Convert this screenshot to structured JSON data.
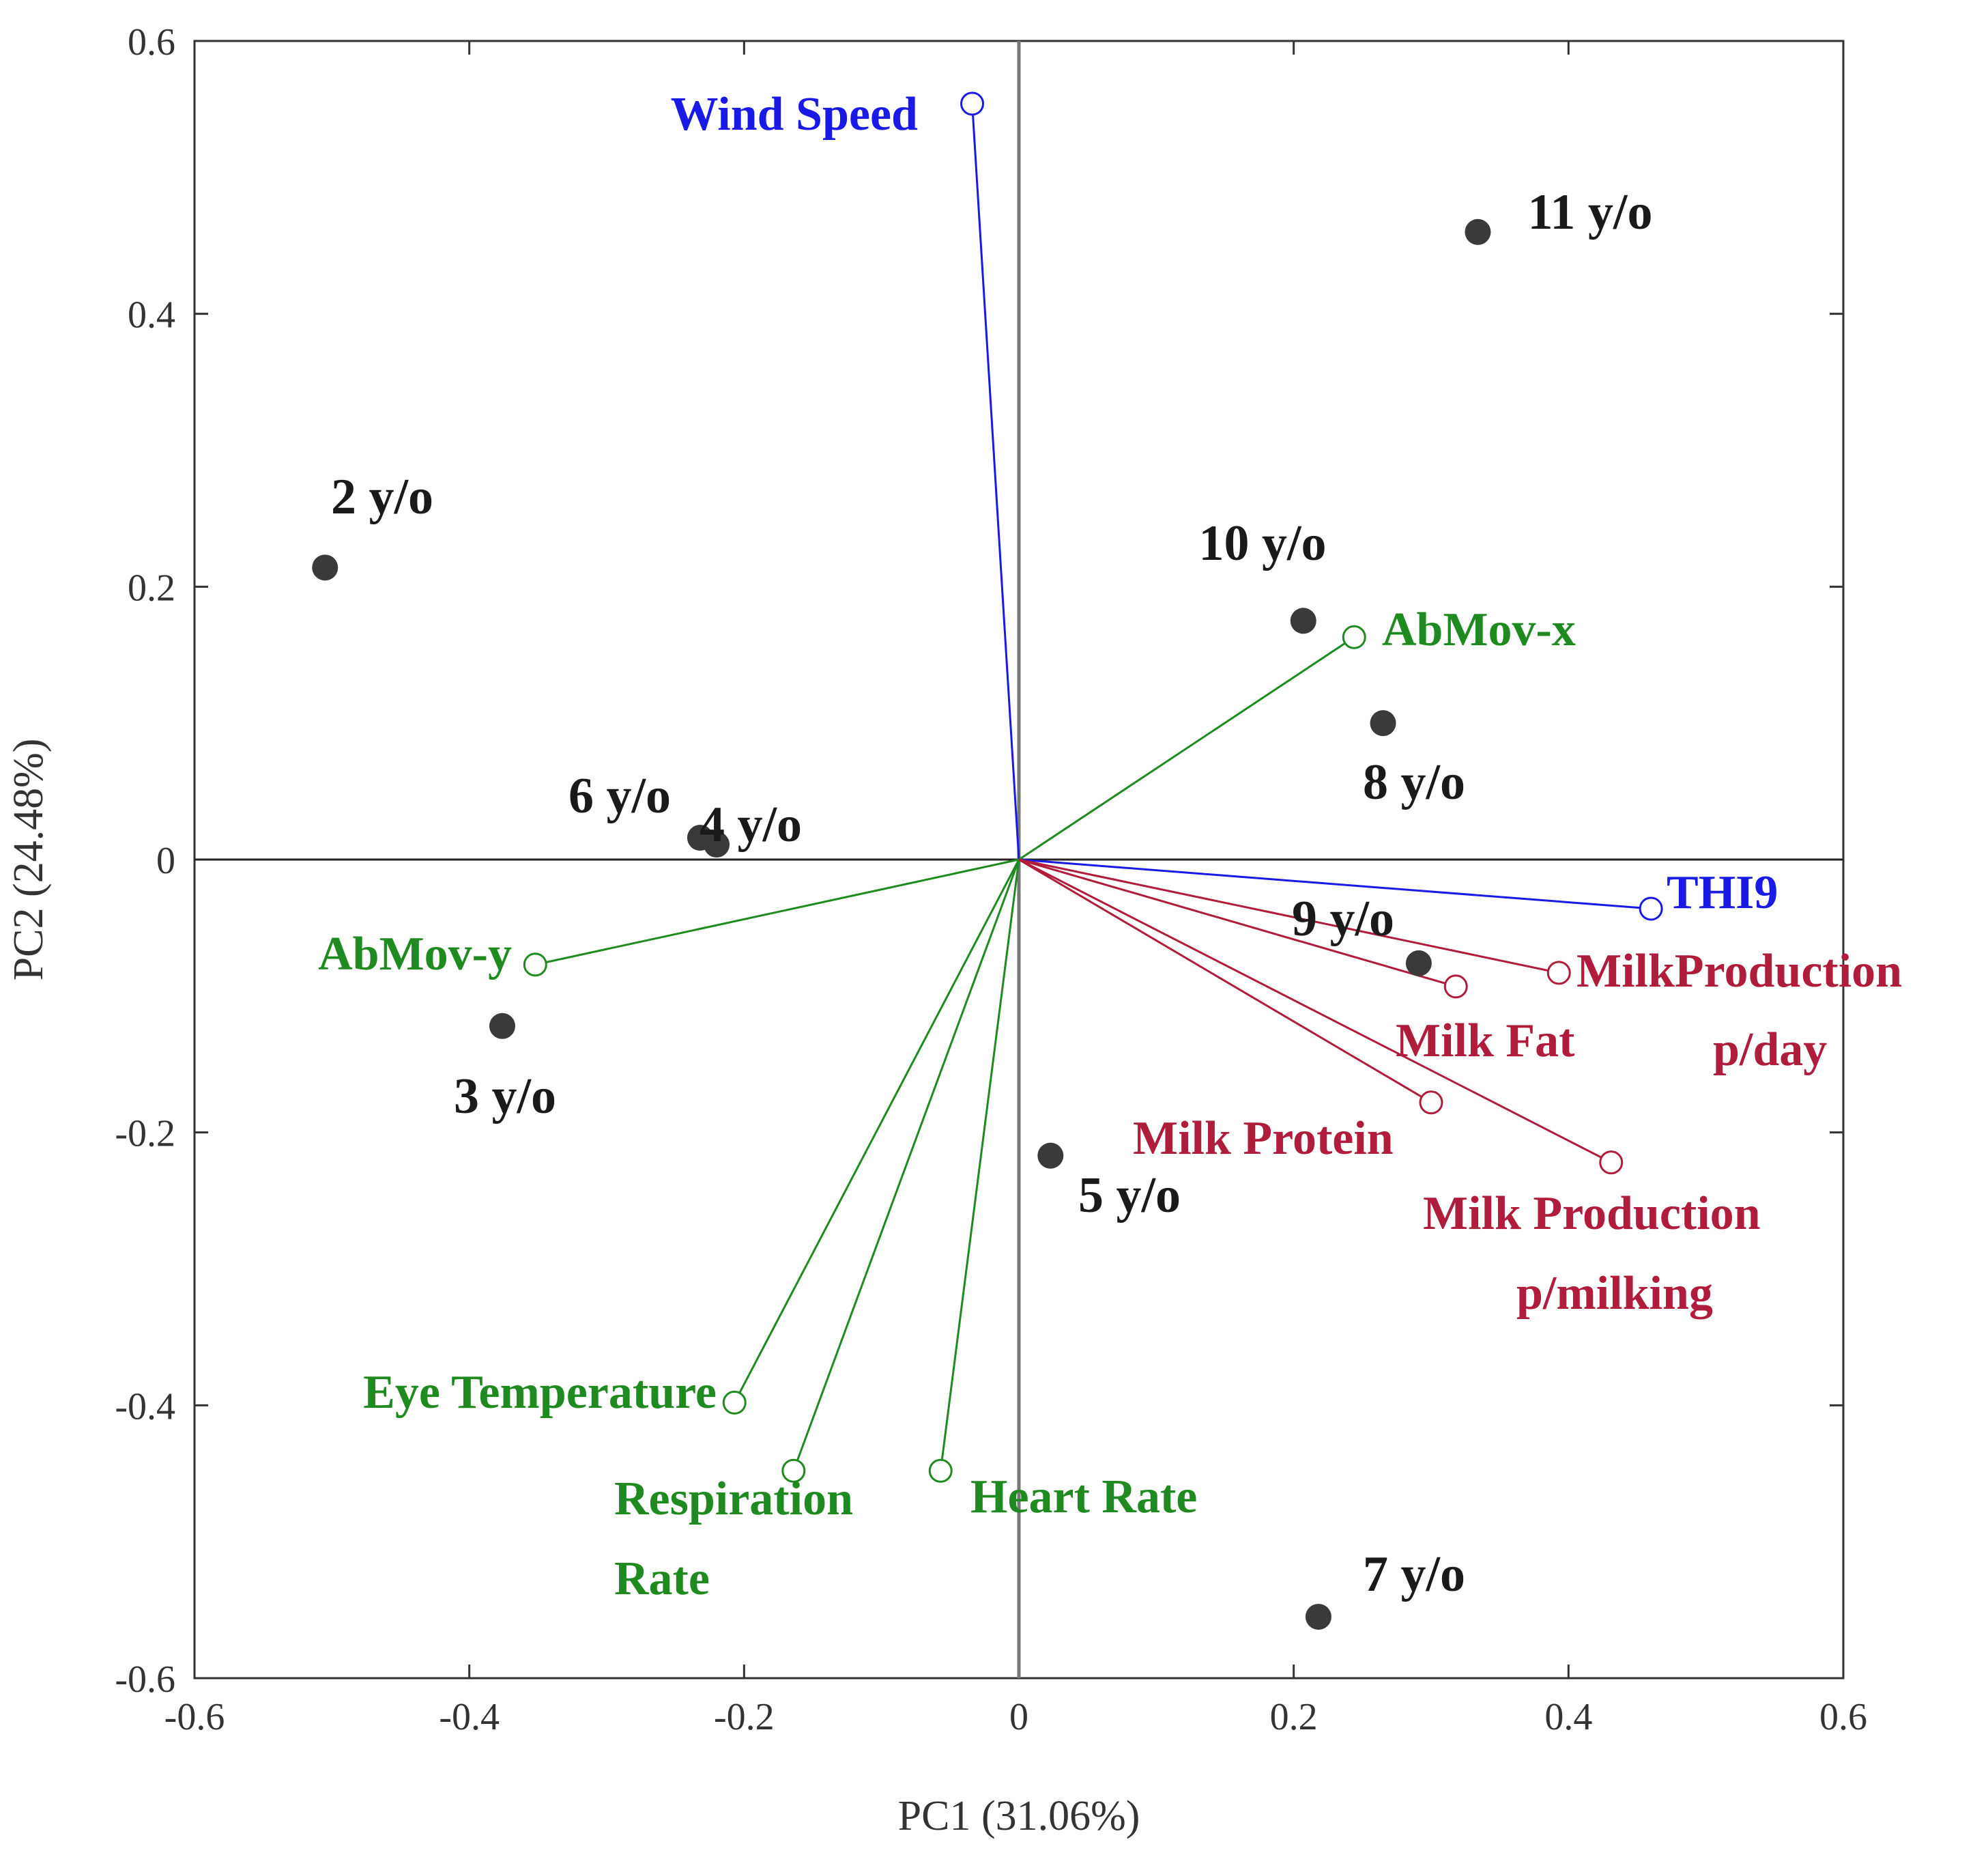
{
  "colors": {
    "observation": "#3a3a3a",
    "green": "#1f8a1f",
    "blue": "#1a1ae6",
    "red": "#b01c3c",
    "axis": "#333333",
    "zero": "#777777"
  },
  "chart_data": {
    "type": "scatter",
    "subtype": "pca-biplot",
    "title": "",
    "xlabel": "PC1 (31.06%)",
    "ylabel": "PC2 (24.48%)",
    "xlim": [
      -0.6,
      0.6
    ],
    "ylim": [
      -0.6,
      0.6
    ],
    "xticks": [
      -0.6,
      -0.4,
      -0.2,
      0,
      0.2,
      0.4,
      0.6
    ],
    "yticks": [
      -0.6,
      -0.4,
      -0.2,
      0,
      0.2,
      0.4,
      0.6
    ],
    "xtick_labels": [
      "-0.6",
      "-0.4",
      "-0.2",
      "0",
      "0.2",
      "0.4",
      "0.6"
    ],
    "ytick_labels": [
      "-0.6",
      "-0.4",
      "-0.2",
      "0",
      "0.2",
      "0.4",
      "0.6"
    ],
    "observations": [
      {
        "label": "2 y/o",
        "x": -0.505,
        "y": 0.214,
        "label_pos": "above"
      },
      {
        "label": "3 y/o",
        "x": -0.376,
        "y": -0.122,
        "label_pos": "below"
      },
      {
        "label": "4 y/o",
        "x": -0.22,
        "y": 0.011,
        "label_pos": "right"
      },
      {
        "label": "6 y/o",
        "x": -0.232,
        "y": 0.016,
        "label_pos": "upper-left"
      },
      {
        "label": "5 y/o",
        "x": 0.023,
        "y": -0.217,
        "label_pos": "lower-right"
      },
      {
        "label": "7 y/o",
        "x": 0.218,
        "y": -0.555,
        "label_pos": "upper-right"
      },
      {
        "label": "8 y/o",
        "x": 0.265,
        "y": 0.1,
        "label_pos": "below"
      },
      {
        "label": "9 y/o",
        "x": 0.291,
        "y": -0.076,
        "label_pos": "upper-left"
      },
      {
        "label": "10 y/o",
        "x": 0.207,
        "y": 0.175,
        "label_pos": "above"
      },
      {
        "label": "11 y/o",
        "x": 0.334,
        "y": 0.46,
        "label_pos": "upper-right"
      }
    ],
    "variables": [
      {
        "lines": [
          "Wind Speed"
        ],
        "x": -0.034,
        "y": 0.554,
        "group": "blue",
        "label_pos": "left"
      },
      {
        "lines": [
          "THI9"
        ],
        "x": 0.46,
        "y": -0.036,
        "group": "blue",
        "label_pos": "right"
      },
      {
        "lines": [
          "AbMov-x"
        ],
        "x": 0.244,
        "y": 0.163,
        "group": "green",
        "label_pos": "right"
      },
      {
        "lines": [
          "AbMov-y"
        ],
        "x": -0.352,
        "y": -0.077,
        "group": "green",
        "label_pos": "left"
      },
      {
        "lines": [
          "Eye Temperature"
        ],
        "x": -0.207,
        "y": -0.398,
        "group": "green",
        "label_pos": "left"
      },
      {
        "lines": [
          "Respiration",
          "Rate"
        ],
        "x": -0.164,
        "y": -0.448,
        "group": "green",
        "label_pos": "below"
      },
      {
        "lines": [
          "Heart Rate"
        ],
        "x": -0.057,
        "y": -0.448,
        "group": "green",
        "label_pos": "lower-right"
      },
      {
        "lines": [
          "MilkProduction",
          "p/day"
        ],
        "x": 0.393,
        "y": -0.083,
        "group": "red",
        "label_pos": "right"
      },
      {
        "lines": [
          "Milk Fat"
        ],
        "x": 0.318,
        "y": -0.093,
        "group": "red",
        "label_pos": "below"
      },
      {
        "lines": [
          "Milk Protein"
        ],
        "x": 0.3,
        "y": -0.178,
        "group": "red",
        "label_pos": "below-left"
      },
      {
        "lines": [
          "Milk Production",
          "p/milking"
        ],
        "x": 0.431,
        "y": -0.222,
        "group": "red",
        "label_pos": "below"
      }
    ]
  }
}
